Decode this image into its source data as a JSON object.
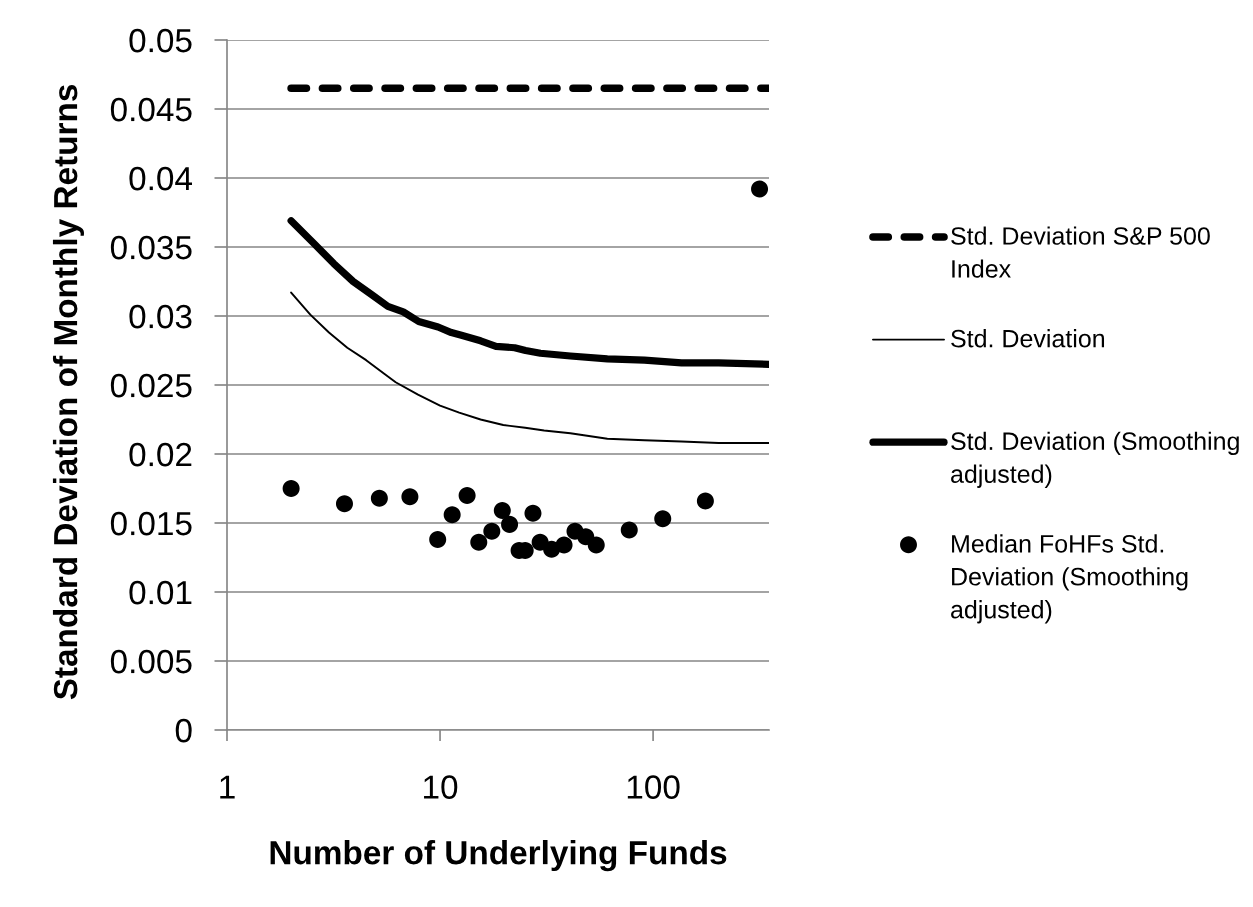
{
  "chart_data": {
    "type": "line",
    "xlabel": "Number of Underlying Funds",
    "ylabel": "Standard Deviation of Monthly Returns",
    "log": "x",
    "xlim": [
      1,
      350
    ],
    "xticks": [
      1,
      10,
      100
    ],
    "ylim": [
      0,
      0.05
    ],
    "yticks": [
      0,
      0.005,
      0.01,
      0.015,
      0.02,
      0.025,
      0.03,
      0.035,
      0.04,
      0.045,
      0.05
    ],
    "grid": "y",
    "legend": "right",
    "series": [
      {
        "name": "Std. Deviation S&P 500 Index",
        "line_style": "dashed",
        "color": "#000000",
        "x": [
          2,
          350
        ],
        "values": [
          0.0465,
          0.0465
        ]
      },
      {
        "name": "Std. Deviation",
        "line_style": "solid",
        "color": "#000000",
        "x": [
          2,
          2.46,
          3.01,
          3.67,
          4.5,
          5.49,
          6.19,
          7.88,
          10,
          12.3,
          15.5,
          19.8,
          25.1,
          30.8,
          40.9,
          61,
          91.1,
          136,
          203,
          350
        ],
        "values": [
          0.0317,
          0.0301,
          0.0288,
          0.0277,
          0.0268,
          0.0258,
          0.0252,
          0.0243,
          0.0235,
          0.023,
          0.0225,
          0.0221,
          0.0219,
          0.0217,
          0.0215,
          0.0211,
          0.021,
          0.0209,
          0.0208,
          0.0208
        ]
      },
      {
        "name": "Std. Deviation (Smoothing adjusted)",
        "line_style": "solid",
        "color": "#000000",
        "x": [
          2,
          2.58,
          3.17,
          3.91,
          4.82,
          5.69,
          6.72,
          7.94,
          9.79,
          11.3,
          12.6,
          15.5,
          18.3,
          22.4,
          25.2,
          29.6,
          40.9,
          61,
          91.1,
          136,
          203,
          350
        ],
        "values": [
          0.0369,
          0.0352,
          0.0338,
          0.0325,
          0.0315,
          0.0307,
          0.0303,
          0.0296,
          0.0292,
          0.0288,
          0.0286,
          0.0282,
          0.0278,
          0.0277,
          0.0275,
          0.0273,
          0.0271,
          0.0269,
          0.0268,
          0.0266,
          0.0266,
          0.0265
        ]
      },
      {
        "name": "Median FoHFs Std. Deviation (Smoothing adjusted)",
        "type": "scatter",
        "marker": "circle",
        "color": "#000000",
        "x": [
          2,
          3.56,
          5.19,
          7.22,
          9.75,
          11.4,
          13.4,
          15.2,
          17.5,
          19.6,
          21.2,
          23.5,
          25.1,
          27.3,
          29.5,
          33.4,
          38.2,
          43,
          48.3,
          54.1,
          77.3,
          111,
          176,
          316
        ],
        "values": [
          0.0175,
          0.0164,
          0.0168,
          0.0169,
          0.0138,
          0.0156,
          0.017,
          0.0136,
          0.0144,
          0.0159,
          0.0149,
          0.013,
          0.013,
          0.0157,
          0.0136,
          0.0131,
          0.0134,
          0.0144,
          0.014,
          0.0134,
          0.0145,
          0.0153,
          0.0166,
          0.0392
        ]
      }
    ]
  }
}
